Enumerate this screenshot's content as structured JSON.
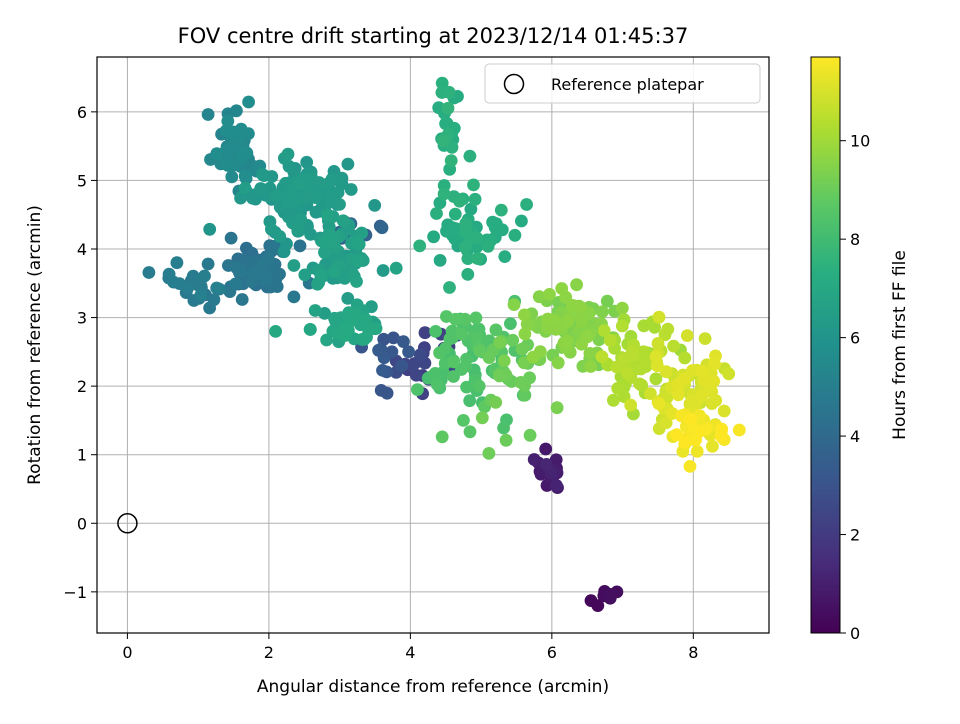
{
  "chart_data": {
    "type": "scatter",
    "title": "FOV centre drift starting at 2023/12/14 01:45:37",
    "xlabel": "Angular distance from reference (arcmin)",
    "ylabel": "Rotation from reference (arcmin)",
    "xlim": [
      -0.43,
      9.07
    ],
    "ylim": [
      -1.6,
      6.8
    ],
    "xticks": [
      "0",
      "2",
      "4",
      "6",
      "8"
    ],
    "yticks": [
      "−1",
      "0",
      "1",
      "2",
      "3",
      "4",
      "5",
      "6"
    ],
    "grid": true,
    "legend": {
      "placement": "top-right",
      "entries": [
        "Reference platepar"
      ]
    },
    "reference_point": {
      "x": 0,
      "y": 0,
      "label": "Reference platepar"
    },
    "colorbar": {
      "label": "Hours from first FF file",
      "range": [
        0,
        11.7
      ],
      "ticks": [
        "0",
        "2",
        "4",
        "6",
        "8",
        "10"
      ],
      "colormap": "viridis"
    },
    "clusters": [
      {
        "h": 0.3,
        "n": 5,
        "cx": 6.78,
        "cy": -1.08,
        "sx": 0.11,
        "sy": 0.09
      },
      {
        "h": 1.0,
        "n": 16,
        "cx": 5.95,
        "cy": 0.8,
        "sx": 0.1,
        "sy": 0.14
      },
      {
        "h": 2.4,
        "n": 20,
        "cx": 4.25,
        "cy": 2.42,
        "sx": 0.28,
        "sy": 0.22
      },
      {
        "h": 3.2,
        "n": 14,
        "cx": 3.6,
        "cy": 2.35,
        "sx": 0.2,
        "sy": 0.2
      },
      {
        "h": 3.8,
        "n": 12,
        "cx": 3.15,
        "cy": 4.3,
        "sx": 0.17,
        "sy": 0.17
      },
      {
        "h": 4.5,
        "n": 60,
        "cx": 1.85,
        "cy": 3.7,
        "sx": 0.25,
        "sy": 0.18
      },
      {
        "h": 4.9,
        "n": 25,
        "cx": 1.0,
        "cy": 3.45,
        "sx": 0.2,
        "sy": 0.18
      },
      {
        "h": 5.5,
        "n": 50,
        "cx": 1.55,
        "cy": 5.45,
        "sx": 0.16,
        "sy": 0.25
      },
      {
        "h": 6.3,
        "n": 110,
        "cx": 2.35,
        "cy": 4.75,
        "sx": 0.35,
        "sy": 0.3
      },
      {
        "h": 6.6,
        "n": 70,
        "cx": 2.95,
        "cy": 3.9,
        "sx": 0.28,
        "sy": 0.28
      },
      {
        "h": 6.9,
        "n": 40,
        "cx": 3.1,
        "cy": 2.9,
        "sx": 0.25,
        "sy": 0.12
      },
      {
        "h": 7.3,
        "n": 55,
        "cx": 4.75,
        "cy": 4.25,
        "sx": 0.35,
        "sy": 0.35
      },
      {
        "h": 7.4,
        "n": 22,
        "cx": 4.5,
        "cy": 5.6,
        "sx": 0.1,
        "sy": 0.4
      },
      {
        "h": 8.4,
        "n": 70,
        "cx": 4.85,
        "cy": 2.5,
        "sx": 0.35,
        "sy": 0.4
      },
      {
        "h": 9.1,
        "n": 30,
        "cx": 5.45,
        "cy": 2.2,
        "sx": 0.3,
        "sy": 0.35
      },
      {
        "h": 9.5,
        "n": 90,
        "cx": 6.25,
        "cy": 2.85,
        "sx": 0.35,
        "sy": 0.28
      },
      {
        "h": 10.3,
        "n": 60,
        "cx": 7.2,
        "cy": 2.4,
        "sx": 0.3,
        "sy": 0.25
      },
      {
        "h": 11.0,
        "n": 70,
        "cx": 7.9,
        "cy": 1.95,
        "sx": 0.25,
        "sy": 0.3
      },
      {
        "h": 11.5,
        "n": 35,
        "cx": 8.1,
        "cy": 1.3,
        "sx": 0.28,
        "sy": 0.18
      }
    ],
    "points": [
      {
        "x": 4.45,
        "y": 6.42,
        "h": 7.4
      },
      {
        "x": 4.45,
        "y": 1.26,
        "h": 8.8
      },
      {
        "x": 4.75,
        "y": 1.5,
        "h": 8.6
      },
      {
        "x": 3.8,
        "y": 3.72,
        "h": 6.8
      },
      {
        "x": 5.05,
        "y": 1.7,
        "h": 8.8
      },
      {
        "x": 5.3,
        "y": 4.28,
        "h": 7.2
      },
      {
        "x": 5.75,
        "y": 0.93,
        "h": 1.1
      },
      {
        "x": 6.08,
        "y": 0.52,
        "h": 0.9
      },
      {
        "x": 8.65,
        "y": 1.36,
        "h": 11.6
      },
      {
        "x": 8.5,
        "y": 2.18,
        "h": 10.9
      },
      {
        "x": 6.35,
        "y": 3.48,
        "h": 9.6
      },
      {
        "x": 7.3,
        "y": 2.88,
        "h": 10.2
      },
      {
        "x": 7.6,
        "y": 2.75,
        "h": 10.5
      },
      {
        "x": 4.1,
        "y": 1.95,
        "h": 8.4
      },
      {
        "x": 3.8,
        "y": 2.2,
        "h": 2.8
      },
      {
        "x": 0.7,
        "y": 3.8,
        "h": 5.0
      },
      {
        "x": 6.65,
        "y": -1.2,
        "h": 0.2
      },
      {
        "x": 6.92,
        "y": -1.0,
        "h": 0.4
      }
    ]
  }
}
